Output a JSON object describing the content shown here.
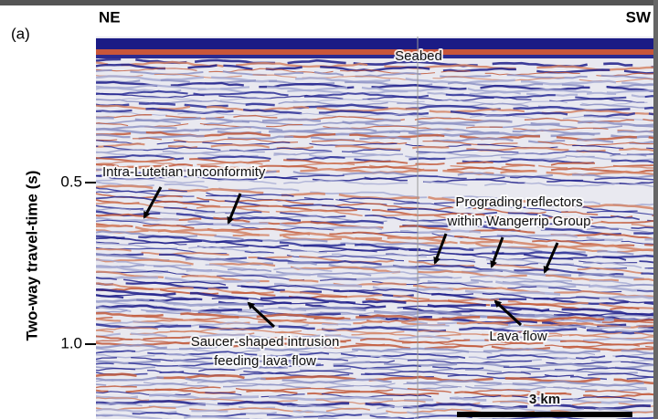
{
  "panel_label": "(a)",
  "directions": {
    "left": "NE",
    "right": "SW"
  },
  "axis": {
    "label": "Two-way travel-time (s)",
    "ticks": [
      "0.5",
      "1.0"
    ]
  },
  "annotations": {
    "seabed": "Seabed",
    "unconformity": "Intra-Lutetian unconformity",
    "prograding": [
      "Prograding reflectors",
      "within Wangerrip Group"
    ],
    "intrusion": [
      "Saucer-shaped intrusion",
      "feeding lava flow"
    ],
    "lava": "Lava flow"
  },
  "scale_bar": "3 km"
}
